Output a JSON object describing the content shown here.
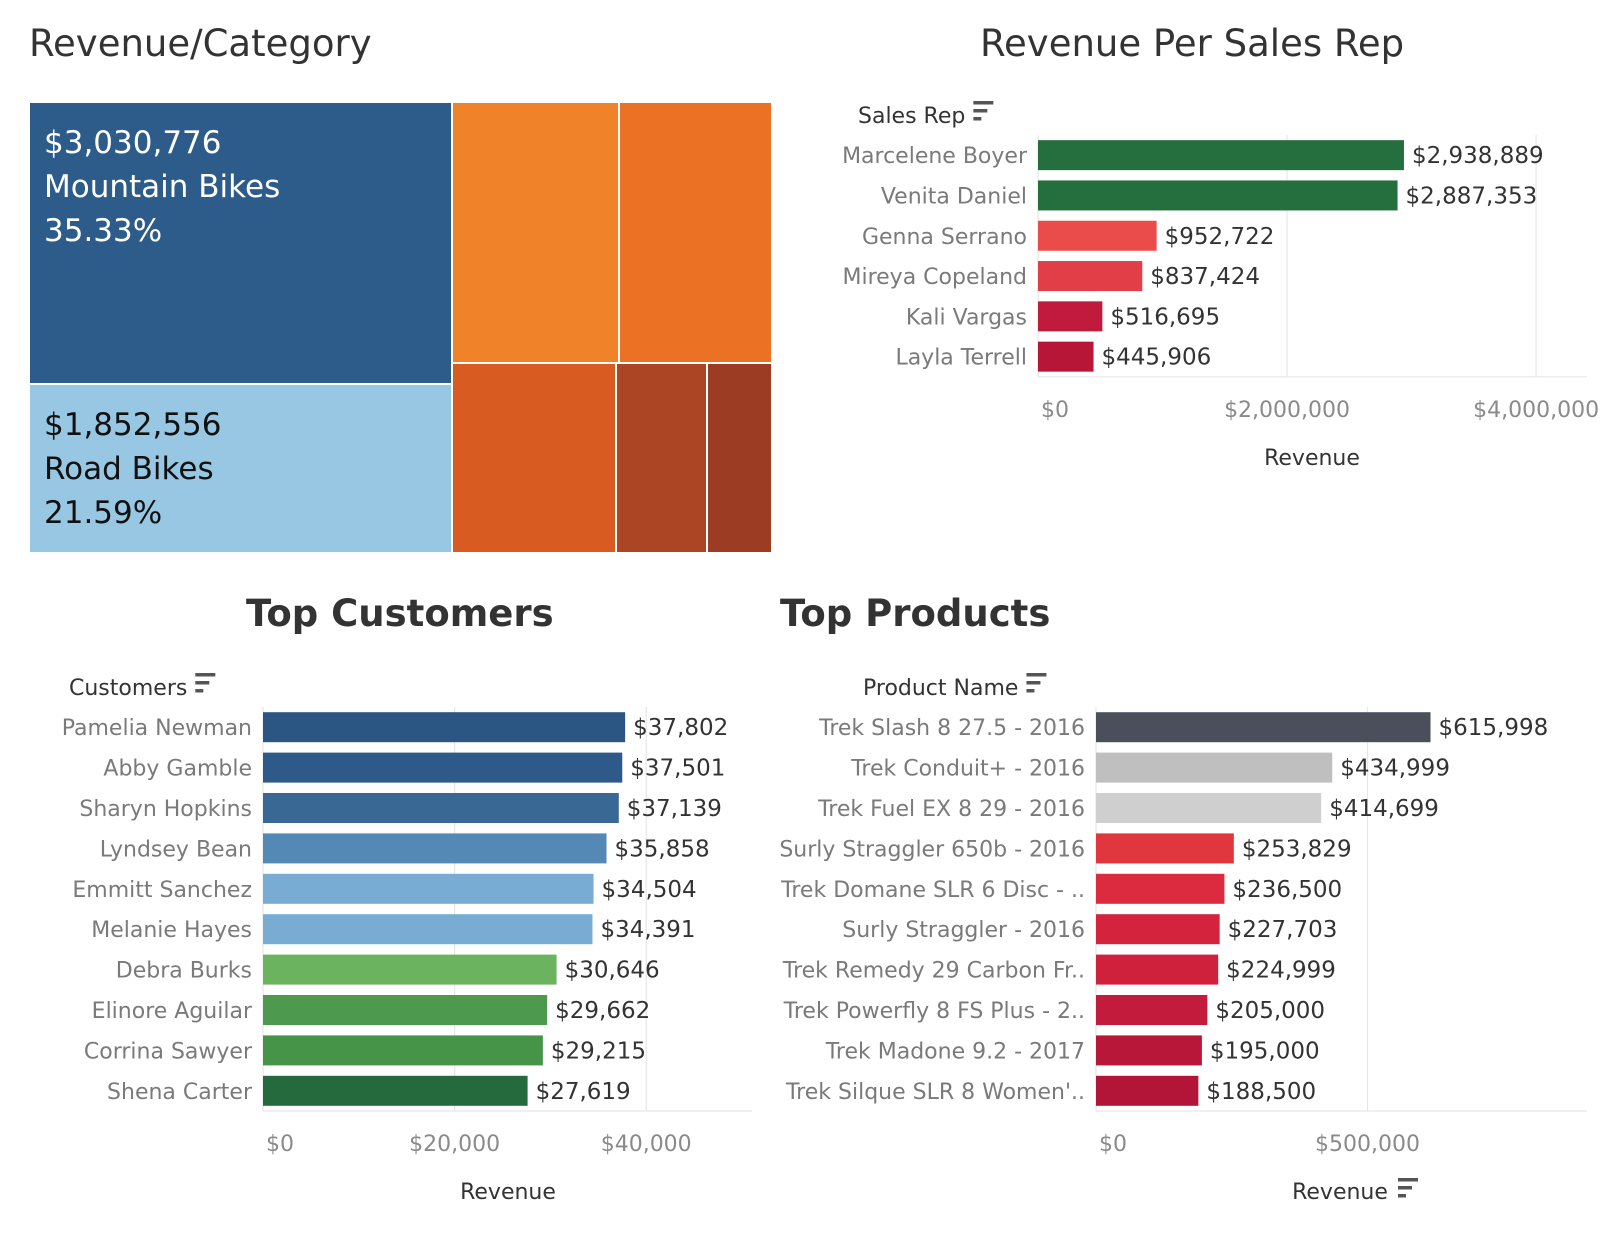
{
  "titles": {
    "treemap": "Revenue/Category",
    "reps": "Revenue Per Sales Rep",
    "customers": "Top Customers",
    "products": "Top Products"
  },
  "icons": {
    "sort": "sort-descending-icon"
  },
  "chart_data": [
    {
      "type": "treemap",
      "title": "Revenue/Category",
      "cells": [
        {
          "name": "Mountain Bikes",
          "value_label": "$3,030,776",
          "share_label": "35.33%",
          "value": 3030776,
          "share": 35.33,
          "color": "#2d5b8a",
          "text_color": "#ffffff"
        },
        {
          "name": "Road Bikes",
          "value_label": "$1,852,556",
          "share_label": "21.59%",
          "value": 1852556,
          "share": 21.59,
          "color": "#97c7e2",
          "text_color": "#111111"
        },
        {
          "name": "",
          "color": "#f08229"
        },
        {
          "name": "",
          "color": "#eb7124"
        },
        {
          "name": "",
          "color": "#d85c22"
        },
        {
          "name": "",
          "color": "#ab4524"
        },
        {
          "name": "",
          "color": "#9c3c22"
        }
      ]
    },
    {
      "type": "bar",
      "orientation": "horizontal",
      "title": "Revenue Per Sales Rep",
      "field_label": "Sales Rep",
      "xlabel": "Revenue",
      "xlim": [
        0,
        4200000
      ],
      "ticks": [
        {
          "value": 0,
          "label": "$0"
        },
        {
          "value": 2000000,
          "label": "$2,000,000"
        },
        {
          "value": 4000000,
          "label": "$4,000,000"
        }
      ],
      "grid": true,
      "categories": [
        "Marcelene Boyer",
        "Venita Daniel",
        "Genna Serrano",
        "Mireya Copeland",
        "Kali Vargas",
        "Layla Terrell"
      ],
      "values": [
        2938889,
        2887353,
        952722,
        837424,
        516695,
        445906
      ],
      "value_labels": [
        "$2,938,889",
        "$2,887,353",
        "$952,722",
        "$837,424",
        "$516,695",
        "$445,906"
      ],
      "colors": [
        "#256f3f",
        "#256f3f",
        "#e94c4a",
        "#e13f48",
        "#c01a3d",
        "#b71637"
      ]
    },
    {
      "type": "bar",
      "orientation": "horizontal",
      "title": "Top Customers",
      "field_label": "Customers",
      "xlabel": "Revenue",
      "xlim": [
        0,
        50000
      ],
      "ticks": [
        {
          "value": 0,
          "label": "$0"
        },
        {
          "value": 20000,
          "label": "$20,000"
        },
        {
          "value": 40000,
          "label": "$40,000"
        }
      ],
      "grid": true,
      "categories": [
        "Pamelia Newman",
        "Abby Gamble",
        "Sharyn Hopkins",
        "Lyndsey Bean",
        "Emmitt Sanchez",
        "Melanie Hayes",
        "Debra Burks",
        "Elinore Aguilar",
        "Corrina Sawyer",
        "Shena Carter"
      ],
      "values": [
        37802,
        37501,
        37139,
        35858,
        34504,
        34391,
        30646,
        29662,
        29215,
        27619
      ],
      "value_labels": [
        "$37,802",
        "$37,501",
        "$37,139",
        "$35,858",
        "$34,504",
        "$34,391",
        "$30,646",
        "$29,662",
        "$29,215",
        "$27,619"
      ],
      "colors": [
        "#2b5684",
        "#2d5a89",
        "#3a6895",
        "#5489b6",
        "#78acd3",
        "#78acd3",
        "#6bb35f",
        "#4d9a4f",
        "#459448",
        "#246a3c"
      ]
    },
    {
      "type": "bar",
      "orientation": "horizontal",
      "title": "Top Products",
      "field_label": "Product Name",
      "xlabel": "Revenue",
      "xlim": [
        0,
        860000
      ],
      "ticks": [
        {
          "value": 0,
          "label": "$0"
        },
        {
          "value": 500000,
          "label": "$500,000"
        }
      ],
      "grid": true,
      "categories": [
        "Trek Slash 8 27.5 - 2016",
        "Trek Conduit+ - 2016",
        "Trek Fuel EX 8 29 - 2016",
        "Surly Straggler 650b - 2016",
        "Trek Domane SLR 6 Disc - ..",
        "Surly Straggler - 2016",
        "Trek Remedy 29 Carbon Fr..",
        "Trek Powerfly 8 FS Plus - 2..",
        "Trek Madone 9.2 - 2017",
        "Trek Silque SLR 8 Women'.."
      ],
      "values": [
        615998,
        434999,
        414699,
        253829,
        236500,
        227703,
        224999,
        205000,
        195000,
        188500
      ],
      "value_labels": [
        "$615,998",
        "$434,999",
        "$414,699",
        "$253,829",
        "$236,500",
        "$227,703",
        "$224,999",
        "$205,000",
        "$195,000",
        "$188,500"
      ],
      "colors": [
        "#4b4f5c",
        "#bfbfbf",
        "#cfcfcf",
        "#e0373e",
        "#dc2b3f",
        "#d4243d",
        "#cf213c",
        "#c31b3b",
        "#b91739",
        "#b31538"
      ]
    }
  ]
}
